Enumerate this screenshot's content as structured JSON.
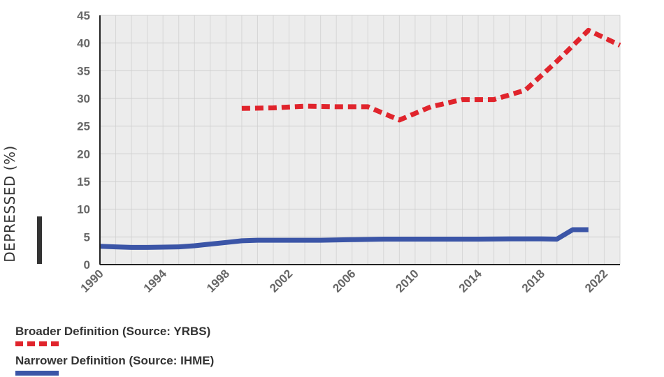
{
  "chart_data": {
    "type": "line",
    "title": "",
    "xlabel": "",
    "ylabel": "DEPRESSED (%)",
    "xlim": [
      1990,
      2023
    ],
    "ylim": [
      0,
      45
    ],
    "x_ticks": [
      "1990",
      "1994",
      "1998",
      "2002",
      "2006",
      "2010",
      "2014",
      "2018",
      "2022"
    ],
    "y_ticks": [
      "0",
      "5",
      "10",
      "15",
      "20",
      "25",
      "30",
      "35",
      "40",
      "45"
    ],
    "grid": true,
    "legend_position": "bottom-left",
    "series": [
      {
        "name": "Broader Definition (Source: YRBS)",
        "style": "dashed",
        "color": "#e0242c",
        "x": [
          1999,
          2001,
          2003,
          2005,
          2007,
          2009,
          2011,
          2013,
          2015,
          2017,
          2019,
          2021,
          2023
        ],
        "y": [
          28.2,
          28.3,
          28.6,
          28.5,
          28.5,
          26.1,
          28.5,
          29.8,
          29.8,
          31.5,
          36.7,
          42.3,
          39.6
        ]
      },
      {
        "name": "Narrower Definition (Source: IHME)",
        "style": "solid",
        "color": "#3b55a7",
        "x": [
          1990,
          1991,
          1992,
          1993,
          1994,
          1995,
          1996,
          1997,
          1998,
          1999,
          2000,
          2002,
          2004,
          2006,
          2008,
          2010,
          2012,
          2014,
          2016,
          2018,
          2019,
          2020,
          2021
        ],
        "y": [
          3.3,
          3.2,
          3.1,
          3.1,
          3.15,
          3.2,
          3.4,
          3.7,
          4.0,
          4.3,
          4.4,
          4.4,
          4.4,
          4.5,
          4.6,
          4.6,
          4.6,
          4.6,
          4.65,
          4.65,
          4.6,
          6.3,
          6.3
        ]
      }
    ]
  }
}
